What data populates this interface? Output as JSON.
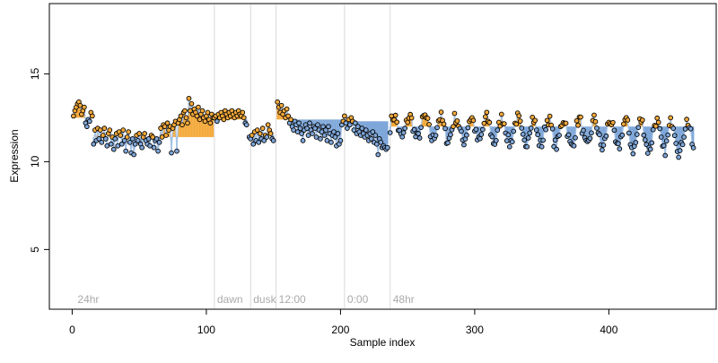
{
  "chart_data": {
    "type": "scatter",
    "title": "",
    "xlabel": "Sample index",
    "ylabel": "Expression",
    "xlim": [
      -17,
      480
    ],
    "ylim": [
      1.6,
      19
    ],
    "xticks": [
      0,
      100,
      200,
      300,
      400
    ],
    "yticks": [
      5,
      10,
      15
    ],
    "grid": false,
    "legend": "none",
    "colors": {
      "background": "#ffffff",
      "axis": "#000000",
      "fill_above": "#f4a93a",
      "fill_below": "#7fa7d9",
      "line": "#a8c4e6",
      "point_stroke": "#000000",
      "divider": "#d9d9d9",
      "annotation_text": "#aaaaaa"
    },
    "annotations": [
      {
        "x": 2,
        "label": "24hr",
        "line": false
      },
      {
        "x": 106,
        "label": "dawn",
        "line": true
      },
      {
        "x": 133,
        "label": "dusk",
        "line": true
      },
      {
        "x": 152,
        "label": "12:00",
        "line": true
      },
      {
        "x": 203,
        "label": "0:00",
        "line": true
      },
      {
        "x": 237,
        "label": "48hr",
        "line": true
      }
    ],
    "segments": [
      {
        "x_start": 1,
        "x_end": 15,
        "baseline": 12.5,
        "y": [
          12.6,
          12.9,
          13.1,
          13.3,
          13.4,
          13.2,
          12.7,
          12.9,
          13.1,
          12.2,
          12.0,
          12.4,
          12.3,
          12.8,
          12.6
        ]
      },
      {
        "x_start": 16,
        "x_end": 105,
        "baseline": 11.4,
        "y": [
          11.0,
          11.8,
          11.2,
          11.9,
          11.3,
          11.8,
          11.1,
          11.5,
          11.9,
          11.3,
          10.9,
          11.6,
          11.8,
          11.0,
          11.4,
          10.7,
          11.3,
          11.6,
          10.9,
          11.7,
          11.5,
          11.0,
          11.8,
          11.2,
          10.6,
          11.4,
          11.7,
          11.1,
          10.5,
          11.3,
          10.4,
          11.0,
          11.5,
          11.2,
          11.6,
          11.0,
          10.8,
          11.4,
          11.6,
          11.2,
          11.0,
          11.3,
          10.9,
          11.5,
          11.4,
          10.8,
          11.2,
          11.3,
          10.6,
          11.1,
          11.9,
          11.4,
          12.1,
          12.0,
          11.5,
          12.2,
          11.8,
          12.0,
          10.5,
          11.9,
          12.1,
          12.3,
          10.6,
          12.2,
          12.4,
          12.6,
          12.1,
          12.8,
          12.9,
          12.5,
          12.2,
          13.6,
          12.9,
          13.3,
          12.7,
          13.0,
          12.8,
          12.6,
          13.1,
          12.4,
          12.7,
          12.9,
          12.5,
          12.3,
          12.6,
          12.8,
          12.4,
          12.2,
          12.7,
          12.5
        ]
      },
      {
        "x_start": 106,
        "x_end": 130,
        "baseline": 12.4,
        "y": [
          12.5,
          12.6,
          12.3,
          12.7,
          12.5,
          12.8,
          12.6,
          12.4,
          12.9,
          12.7,
          12.5,
          12.8,
          12.6,
          12.9,
          12.7,
          12.5,
          12.8,
          12.6,
          12.9,
          12.7,
          12.6,
          12.8,
          12.5,
          12.2,
          12.1
        ]
      },
      {
        "x_start": 132,
        "x_end": 150,
        "baseline": 11.5,
        "y": [
          11.4,
          11.3,
          11.5,
          11.0,
          11.7,
          11.2,
          11.8,
          11.1,
          11.6,
          11.3,
          11.9,
          11.2,
          11.5,
          11.4,
          12.1,
          11.8,
          11.6,
          11.3,
          11.2
        ]
      },
      {
        "x_start": 153,
        "x_end": 201,
        "baseline": 12.4,
        "y": [
          13.4,
          13.1,
          12.8,
          13.2,
          12.7,
          12.9,
          12.5,
          13.0,
          12.6,
          12.2,
          12.4,
          12.0,
          11.8,
          12.3,
          12.1,
          11.7,
          12.2,
          11.9,
          11.6,
          11.2,
          11.8,
          12.1,
          11.9,
          11.5,
          12.2,
          11.8,
          11.6,
          12.0,
          11.9,
          11.4,
          12.1,
          11.8,
          11.3,
          11.7,
          12.0,
          11.5,
          11.8,
          11.2,
          12.0,
          11.6,
          11.1,
          11.5,
          11.7,
          11.4,
          10.9,
          11.6,
          11.0,
          11.2,
          12.1
        ]
      },
      {
        "x_start": 202,
        "x_end": 235,
        "baseline": 12.3,
        "y": [
          12.3,
          12.6,
          12.2,
          11.9,
          12.4,
          12.1,
          12.5,
          12.3,
          11.8,
          12.2,
          11.6,
          12.0,
          11.7,
          11.5,
          11.9,
          11.6,
          11.4,
          11.8,
          11.5,
          11.2,
          11.6,
          11.3,
          11.7,
          11.1,
          11.5,
          11.0,
          10.4,
          11.3,
          11.1,
          10.8,
          10.9,
          10.8,
          10.7,
          10.8
        ]
      },
      {
        "x_start": 237,
        "x_end": 463,
        "baseline": 12.0,
        "amp": 0.6,
        "period": 11.5,
        "amp_growth": 0.5,
        "decline": 0.6,
        "jitter": 0.35
      }
    ]
  }
}
